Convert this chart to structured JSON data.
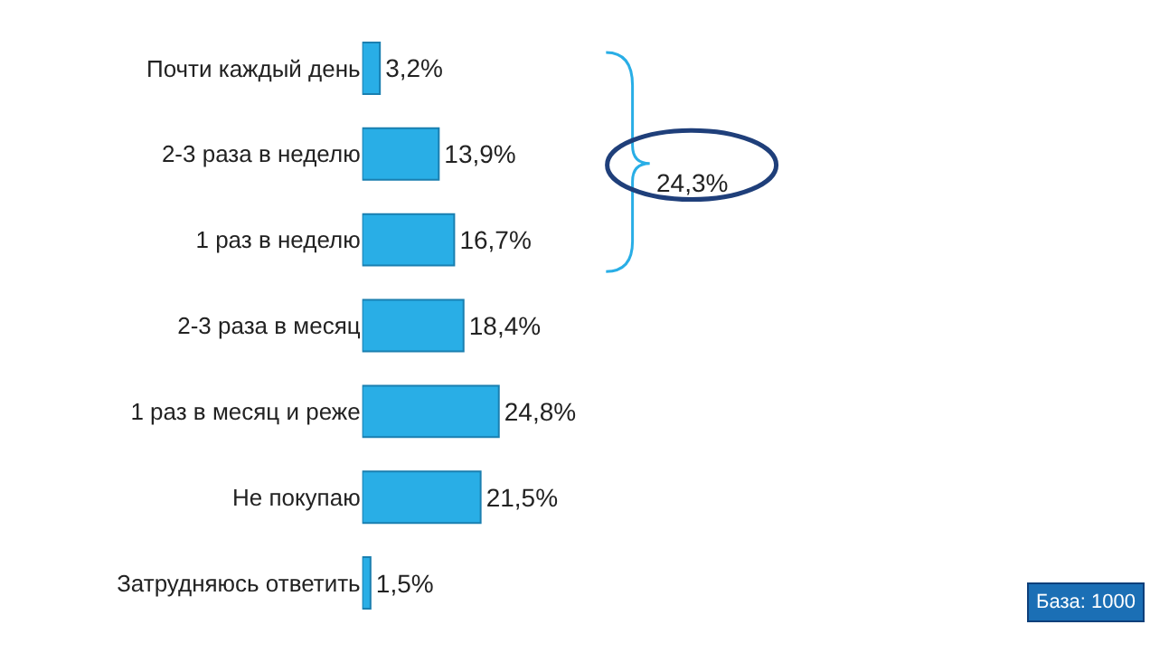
{
  "chart_data": {
    "type": "bar",
    "orientation": "horizontal",
    "categories": [
      "Почти каждый день",
      "2-3 раза в неделю",
      "1 раз в неделю",
      "2-3 раза в месяц",
      "1 раз в месяц и реже",
      "Не покупаю",
      "Затрудняюсь ответить"
    ],
    "values": [
      3.2,
      13.9,
      16.7,
      18.4,
      24.8,
      21.5,
      1.5
    ],
    "value_labels": [
      "3,2%",
      "13,9%",
      "16,7%",
      "18,4%",
      "24,8%",
      "21,5%",
      "1,5%"
    ],
    "color": "#29aee6",
    "annotations": [
      "24,3%",
      "База: 1000"
    ]
  }
}
